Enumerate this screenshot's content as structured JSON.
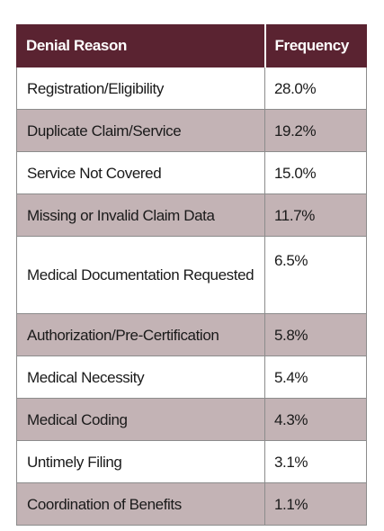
{
  "table": {
    "headers": [
      "Denial Reason",
      "Frequency"
    ],
    "rows": [
      {
        "reason": "Registration/Eligibility",
        "frequency": "28.0%"
      },
      {
        "reason": "Duplicate Claim/Service",
        "frequency": "19.2%"
      },
      {
        "reason": "Service Not Covered",
        "frequency": "15.0%"
      },
      {
        "reason": "Missing or Invalid Claim Data",
        "frequency": "11.7%"
      },
      {
        "reason": "Medical Documentation Requested",
        "frequency": "6.5%"
      },
      {
        "reason": "Authorization/Pre-Certification",
        "frequency": "5.8%"
      },
      {
        "reason": "Medical Necessity",
        "frequency": "5.4%"
      },
      {
        "reason": "Medical Coding",
        "frequency": "4.3%"
      },
      {
        "reason": "Untimely Filing",
        "frequency": "3.1%"
      },
      {
        "reason": "Coordination of Benefits",
        "frequency": "1.1%"
      }
    ],
    "colors": {
      "header_background": "#5a2331",
      "shaded_row": "#c3b3b5",
      "plain_row": "#ffffff"
    }
  }
}
